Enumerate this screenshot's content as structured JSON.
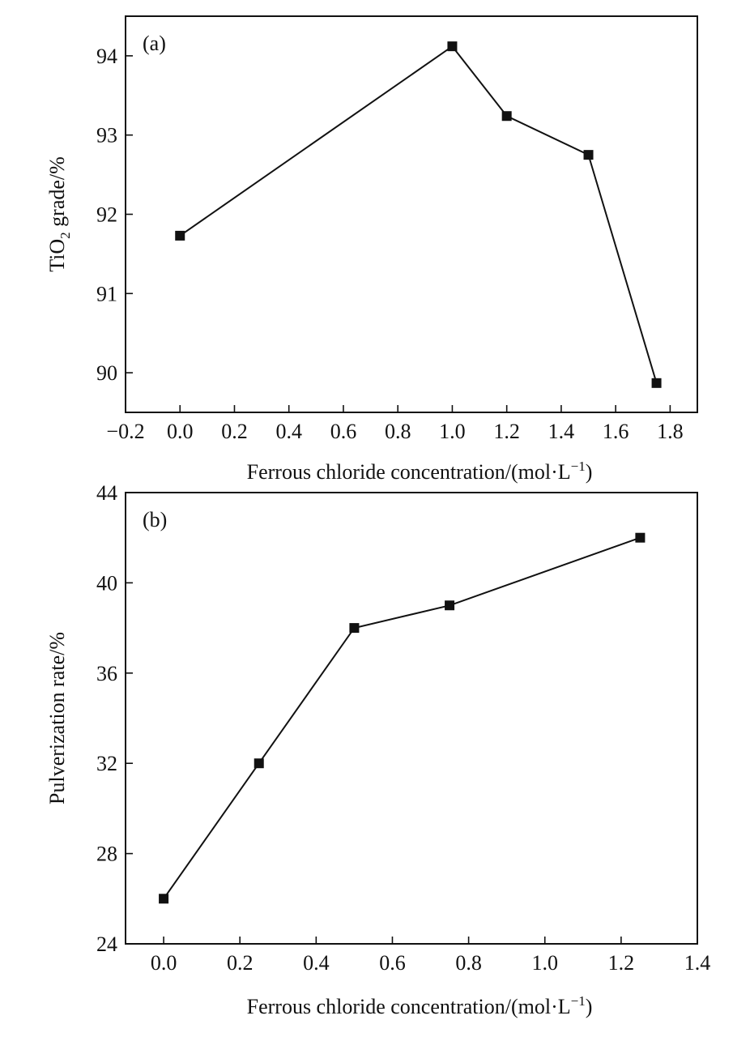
{
  "chart_data": [
    {
      "type": "line",
      "panel_label": "(a)",
      "xlabel": "Ferrous chloride concentration/(mol·L",
      "xlabel_sup": "−1",
      "xlabel_close": ")",
      "ylabel_main": "TiO",
      "ylabel_sub": "2",
      "ylabel_rest": " grade/%",
      "xlim": [
        -0.2,
        1.9
      ],
      "ylim": [
        89.5,
        94.5
      ],
      "xticks": [
        "−0.2",
        "0.0",
        "0.2",
        "0.4",
        "0.6",
        "0.8",
        "1.0",
        "1.2",
        "1.4",
        "1.6",
        "1.8"
      ],
      "xtick_values": [
        -0.2,
        0.0,
        0.2,
        0.4,
        0.6,
        0.8,
        1.0,
        1.2,
        1.4,
        1.6,
        1.8
      ],
      "yticks": [
        "90",
        "91",
        "92",
        "93",
        "94"
      ],
      "ytick_values": [
        90,
        91,
        92,
        93,
        94
      ],
      "grid": false,
      "marker": "square",
      "series": [
        {
          "x": [
            0.0,
            1.0,
            1.2,
            1.5,
            1.75
          ],
          "y": [
            91.73,
            94.12,
            93.24,
            92.75,
            89.87
          ]
        }
      ]
    },
    {
      "type": "line",
      "panel_label": "(b)",
      "xlabel": "Ferrous chloride concentration/(mol·L",
      "xlabel_sup": "−1",
      "xlabel_close": ")",
      "ylabel_main": "Pulverization rate/%",
      "ylabel_sub": "",
      "ylabel_rest": "",
      "xlim": [
        -0.1,
        1.4
      ],
      "ylim": [
        24,
        44
      ],
      "xticks": [
        "0.0",
        "0.2",
        "0.4",
        "0.6",
        "0.8",
        "1.0",
        "1.2",
        "1.4"
      ],
      "xtick_values": [
        0.0,
        0.2,
        0.4,
        0.6,
        0.8,
        1.0,
        1.2,
        1.4
      ],
      "yticks": [
        "24",
        "28",
        "32",
        "36",
        "40",
        "44"
      ],
      "ytick_values": [
        24,
        28,
        32,
        36,
        40,
        44
      ],
      "grid": false,
      "marker": "square",
      "series": [
        {
          "x": [
            0.0,
            0.25,
            0.5,
            0.75,
            1.25
          ],
          "y": [
            26,
            32,
            38,
            39,
            42
          ]
        }
      ]
    }
  ]
}
